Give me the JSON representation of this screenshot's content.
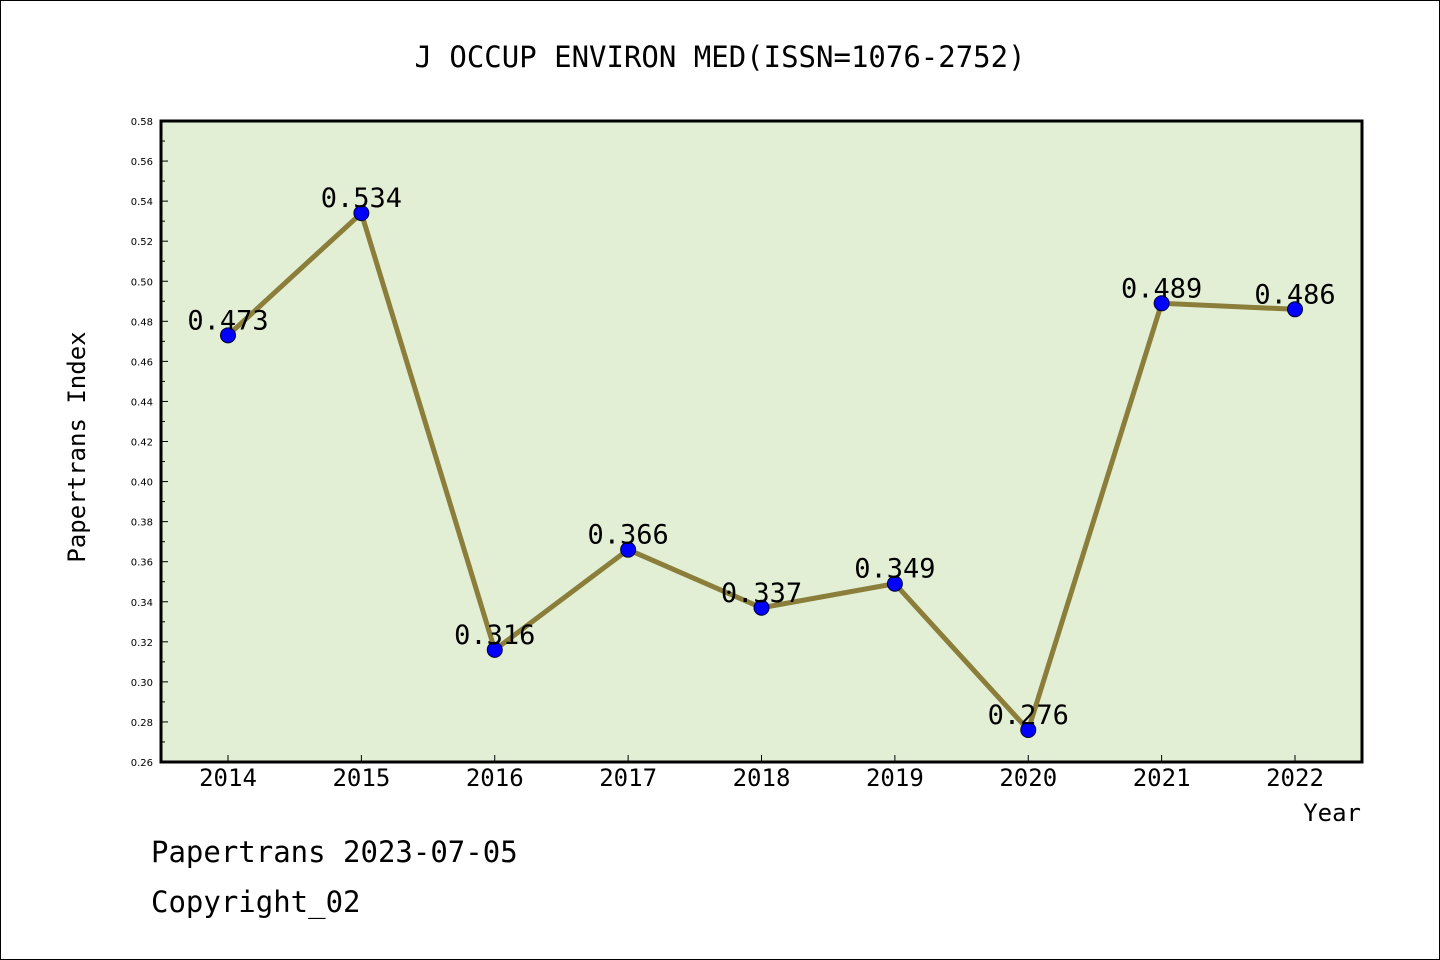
{
  "chart_data": {
    "type": "line",
    "title": "J OCCUP ENVIRON MED(ISSN=1076-2752)",
    "xlabel": "Year",
    "ylabel": "Papertrans Index",
    "categories": [
      "2014",
      "2015",
      "2016",
      "2017",
      "2018",
      "2019",
      "2020",
      "2021",
      "2022"
    ],
    "series": [
      {
        "values": [
          0.473,
          0.534,
          0.316,
          0.366,
          0.337,
          0.349,
          0.276,
          0.489,
          0.486
        ],
        "labels": [
          "0.473",
          "0.534",
          "0.316",
          "0.366",
          "0.337",
          "0.349",
          "0.276",
          "0.489",
          "0.486"
        ],
        "line_color": "#8b7d3a",
        "marker_color": "#0000ff"
      }
    ],
    "ylim": [
      0.26,
      0.58
    ],
    "yticks": [
      "0.26",
      "0.28",
      "0.30",
      "0.32",
      "0.34",
      "0.36",
      "0.38",
      "0.40",
      "0.42",
      "0.44",
      "0.46",
      "0.48",
      "0.50",
      "0.52",
      "0.54",
      "0.56",
      "0.58"
    ],
    "grid": false,
    "legend": "none",
    "plot_background": "#e2efd5"
  },
  "footer": {
    "line1": "Papertrans 2023-07-05",
    "line2": "Copyright_02"
  }
}
